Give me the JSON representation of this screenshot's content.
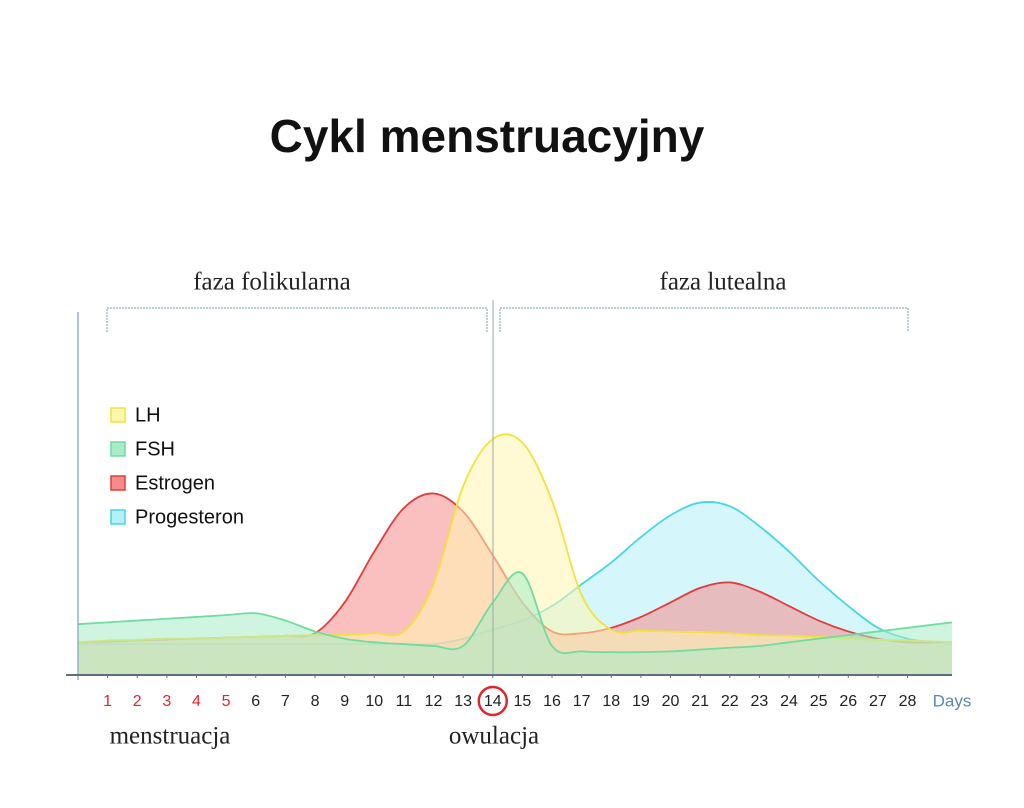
{
  "chart_data": {
    "type": "area",
    "title": "Cykl menstruacyjny",
    "x_label": "Days",
    "annotations": {
      "follicular_phase": "faza folikularna",
      "luteal_phase": "faza lutealna",
      "menstruation": "menstruacja",
      "ovulation": "owulacja"
    },
    "x": [
      0,
      1,
      2,
      3,
      4,
      5,
      6,
      7,
      8,
      9,
      10,
      11,
      12,
      13,
      14,
      15,
      16,
      17,
      18,
      19,
      20,
      21,
      22,
      23,
      24,
      25,
      26,
      27,
      28,
      29,
      29.5
    ],
    "xlim": [
      0,
      29.5
    ],
    "xticks": [
      1,
      2,
      3,
      4,
      5,
      6,
      7,
      8,
      9,
      10,
      11,
      12,
      13,
      14,
      15,
      16,
      17,
      18,
      19,
      20,
      21,
      22,
      23,
      24,
      25,
      26,
      27,
      28
    ],
    "xtick_colors": [
      "#e0262b",
      "#e0262b",
      "#e0262b",
      "#e0262b",
      "#e0262b",
      "#222",
      "#222",
      "#222",
      "#222",
      "#222",
      "#222",
      "#222",
      "#222",
      "#222",
      "#222",
      "#222",
      "#222",
      "#222",
      "#222",
      "#222",
      "#222",
      "#222",
      "#222",
      "#222",
      "#222",
      "#222",
      "#222",
      "#222"
    ],
    "circled_xtick": 14,
    "circle_color": "#e0262b",
    "ylim": [
      0,
      100
    ],
    "series": [
      {
        "name": "Progesteron",
        "color": "#47d6e6",
        "fill": "#b3f0f8",
        "values": [
          8.5,
          8.5,
          8.5,
          8.5,
          8.5,
          8.5,
          8.5,
          8.5,
          8.5,
          8.5,
          8.5,
          8.5,
          8.5,
          10,
          12.5,
          15,
          19,
          25,
          31,
          38,
          44,
          47.5,
          46.5,
          41,
          34,
          26,
          19,
          13,
          10,
          9,
          9
        ]
      },
      {
        "name": "Estrogen",
        "color": "#e33b3b",
        "fill": "#f58c8c",
        "values": [
          9,
          9.2,
          9.5,
          9.8,
          10,
          10.3,
          10.5,
          10.8,
          11.5,
          20,
          34,
          46,
          50,
          45,
          33,
          20,
          12,
          11.5,
          13,
          16,
          20,
          24,
          25.5,
          23,
          19,
          15,
          12,
          10,
          9,
          9,
          9
        ]
      },
      {
        "name": "LH",
        "color": "#f2e23a",
        "fill": "#fff6b0",
        "values": [
          9,
          9.5,
          9.7,
          10,
          10,
          10.3,
          10.5,
          10.8,
          11,
          11,
          11.5,
          12,
          25,
          52,
          65,
          64,
          48,
          22,
          12.5,
          12.2,
          12,
          11.8,
          11.5,
          11,
          10.8,
          10.5,
          10,
          9.7,
          9.5,
          9.2,
          9
        ]
      },
      {
        "name": "FSH",
        "color": "#6fdca0",
        "fill": "#a8ecc6",
        "values": [
          14,
          14.5,
          15,
          15.5,
          16,
          16.5,
          17,
          15,
          12,
          10,
          9,
          8.5,
          8,
          8,
          20,
          28,
          8,
          6.5,
          6.3,
          6.3,
          6.5,
          7,
          7.5,
          8,
          9,
          10,
          11,
          12,
          13,
          14,
          14.5
        ]
      }
    ],
    "legend_order": [
      2,
      3,
      1,
      0
    ]
  }
}
